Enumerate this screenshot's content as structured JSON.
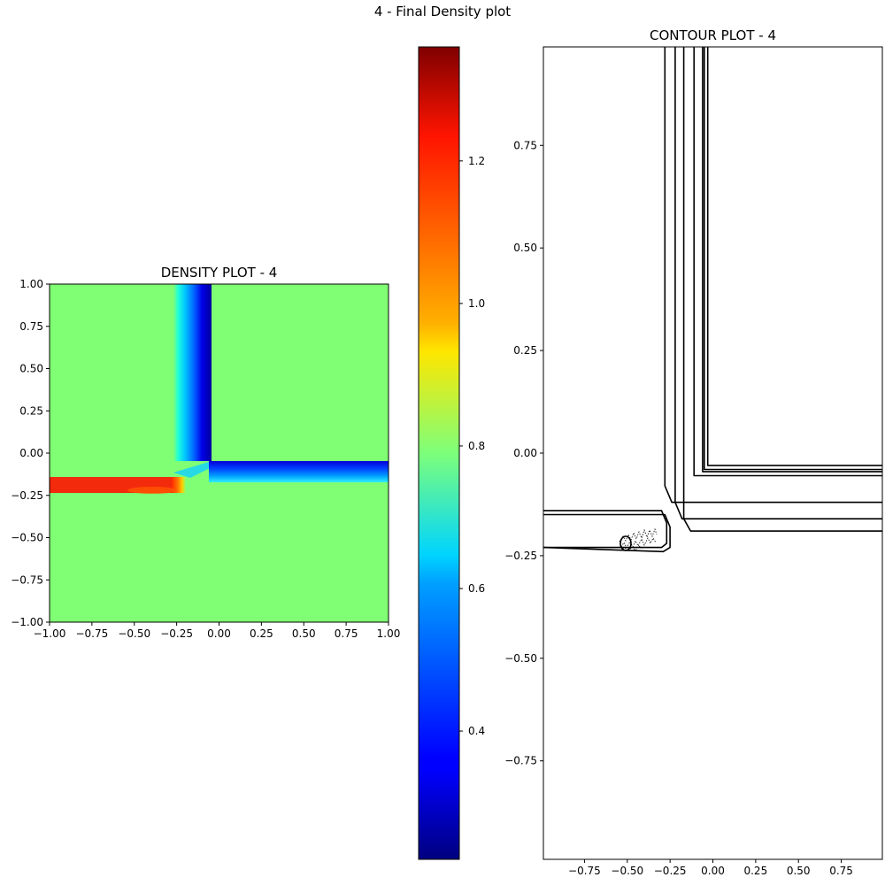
{
  "figure": {
    "suptitle": "4 - Final Density plot"
  },
  "colors": {
    "background": "#ffffff",
    "ambient": "#80ff74",
    "jet_low": "#00007f",
    "jet_high": "#7f0000"
  },
  "chart_data": [
    {
      "type": "heatmap",
      "title": "DENSITY PLOT - 4",
      "xlabel": "",
      "ylabel": "",
      "xlim": [
        -1.0,
        1.0
      ],
      "ylim": [
        -1.0,
        1.0
      ],
      "xticks": [
        -1.0,
        -0.75,
        -0.5,
        -0.25,
        0.0,
        0.25,
        0.5,
        0.75,
        1.0
      ],
      "yticks": [
        -1.0,
        -0.75,
        -0.5,
        -0.25,
        0.0,
        0.25,
        0.5,
        0.75,
        1.0
      ],
      "xtick_labels": [
        "−1.00",
        "−0.75",
        "−0.50",
        "−0.25",
        "0.00",
        "0.25",
        "0.50",
        "0.75",
        "1.00"
      ],
      "ytick_labels": [
        "−1.00",
        "−0.75",
        "−0.50",
        "−0.25",
        "0.00",
        "0.25",
        "0.50",
        "0.75",
        "1.00"
      ],
      "colormap": "jet",
      "grid": false,
      "ambient_value": 0.8,
      "features": [
        {
          "kind": "vertical-strip",
          "x_range": [
            -0.27,
            -0.05
          ],
          "y_range": [
            -0.1,
            1.0
          ],
          "value_left": 0.62,
          "value_right": 0.27
        },
        {
          "kind": "horizontal-strip",
          "x_range": [
            -0.08,
            1.0
          ],
          "y_range": [
            -0.17,
            -0.05
          ],
          "value_top": 0.27,
          "value_bottom": 0.6
        },
        {
          "kind": "jet-strip",
          "x_range": [
            -1.0,
            -0.25
          ],
          "y_range": [
            -0.23,
            -0.15
          ],
          "value": 1.16
        }
      ]
    },
    {
      "type": "colorbar",
      "colormap": "jet",
      "vmin": 0.22,
      "vmax": 1.36,
      "ticks": [
        0.4,
        0.6,
        0.8,
        1.0,
        1.2
      ],
      "tick_labels": [
        "0.4",
        "0.6",
        "0.8",
        "1.0",
        "1.2"
      ]
    },
    {
      "type": "line",
      "title": "CONTOUR PLOT - 4",
      "xlabel": "",
      "ylabel": "",
      "xlim": [
        -0.99,
        0.99
      ],
      "ylim": [
        -0.99,
        0.99
      ],
      "xticks": [
        -0.75,
        -0.5,
        -0.25,
        0.0,
        0.25,
        0.5,
        0.75
      ],
      "yticks": [
        -0.75,
        -0.5,
        -0.25,
        0.0,
        0.25,
        0.5,
        0.75
      ],
      "xtick_labels": [
        "−0.75",
        "−0.50",
        "−0.25",
        "0.00",
        "0.25",
        "0.50",
        "0.75"
      ],
      "ytick_labels": [
        "−0.75",
        "−0.50",
        "−0.25",
        "0.00",
        "0.25",
        "0.50",
        "0.75"
      ],
      "grid": false,
      "series": [
        {
          "color": "#000000",
          "x": [
            -0.28,
            -0.28,
            -0.24,
            0.99
          ],
          "y": [
            0.99,
            -0.08,
            -0.12,
            -0.12
          ]
        },
        {
          "color": "#000000",
          "x": [
            -0.22,
            -0.22,
            -0.18,
            0.99
          ],
          "y": [
            0.99,
            -0.12,
            -0.16,
            -0.16
          ]
        },
        {
          "color": "#000000",
          "x": [
            -0.17,
            -0.17,
            -0.13,
            0.99
          ],
          "y": [
            0.99,
            -0.16,
            -0.19,
            -0.19
          ]
        },
        {
          "color": "#000000",
          "x": [
            -0.11,
            -0.11,
            0.99
          ],
          "y": [
            0.99,
            -0.055,
            -0.055
          ]
        },
        {
          "color": "#000000",
          "x": [
            -0.06,
            -0.06,
            0.99
          ],
          "y": [
            0.99,
            -0.045,
            -0.045
          ]
        },
        {
          "color": "#000000",
          "x": [
            -0.05,
            -0.05,
            0.99
          ],
          "y": [
            0.99,
            -0.04,
            -0.04
          ]
        },
        {
          "color": "#000000",
          "x": [
            -0.03,
            -0.03,
            0.99
          ],
          "y": [
            0.99,
            -0.03,
            -0.03
          ]
        },
        {
          "color": "#000000",
          "x": [
            -0.99,
            -0.3,
            -0.27,
            -0.27,
            -0.3,
            -0.99
          ],
          "y": [
            -0.14,
            -0.14,
            -0.17,
            -0.22,
            -0.23,
            -0.23
          ]
        },
        {
          "color": "#000000",
          "x": [
            -0.99,
            -0.28,
            -0.25,
            -0.25,
            -0.29,
            -0.99
          ],
          "y": [
            -0.15,
            -0.15,
            -0.18,
            -0.23,
            -0.24,
            -0.23
          ]
        }
      ]
    }
  ]
}
